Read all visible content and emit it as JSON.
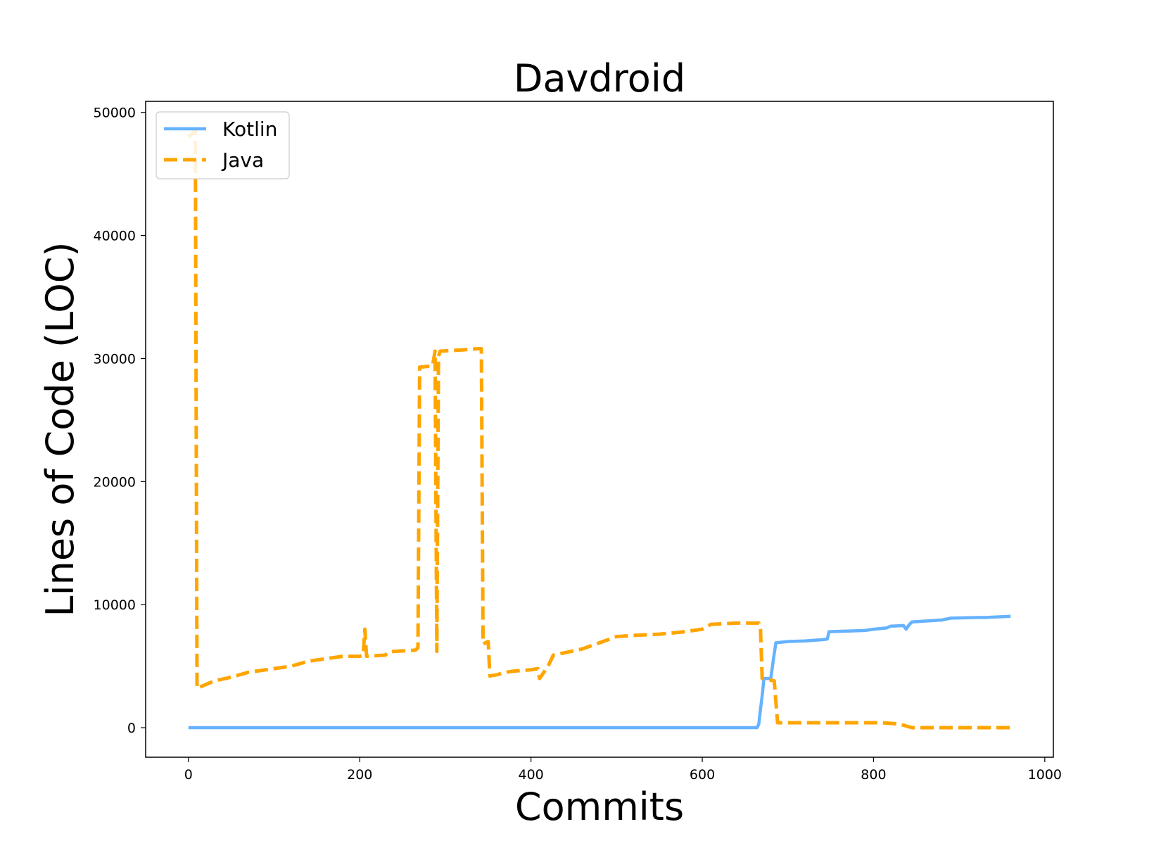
{
  "chart_data": {
    "type": "line",
    "title": "Davdroid",
    "xlabel": "Commits",
    "ylabel": "Lines of Code (LOC)",
    "xlim": [
      -50,
      1010
    ],
    "ylim": [
      -2400,
      50900
    ],
    "xticks": [
      0,
      200,
      400,
      600,
      800,
      1000
    ],
    "yticks": [
      0,
      10000,
      20000,
      30000,
      40000,
      50000
    ],
    "grid": false,
    "legend_position": "upper-left",
    "series": [
      {
        "name": "Kotlin",
        "color": "#66b2ff",
        "style": "solid",
        "points": [
          [
            0,
            0
          ],
          [
            664,
            0
          ],
          [
            666,
            300
          ],
          [
            668,
            1500
          ],
          [
            670,
            2600
          ],
          [
            672,
            4000
          ],
          [
            680,
            4000
          ],
          [
            684,
            6000
          ],
          [
            686,
            6900
          ],
          [
            700,
            7000
          ],
          [
            720,
            7050
          ],
          [
            740,
            7150
          ],
          [
            746,
            7200
          ],
          [
            748,
            7800
          ],
          [
            770,
            7850
          ],
          [
            790,
            7900
          ],
          [
            800,
            8000
          ],
          [
            815,
            8100
          ],
          [
            820,
            8250
          ],
          [
            835,
            8300
          ],
          [
            838,
            8000
          ],
          [
            842,
            8400
          ],
          [
            845,
            8600
          ],
          [
            880,
            8750
          ],
          [
            890,
            8900
          ],
          [
            920,
            8950
          ],
          [
            930,
            8950
          ],
          [
            960,
            9050
          ]
        ]
      },
      {
        "name": "Java",
        "color": "#ffa500",
        "style": "dashed",
        "points": [
          [
            0,
            48000
          ],
          [
            8,
            48500
          ],
          [
            10,
            3200
          ],
          [
            20,
            3500
          ],
          [
            30,
            3800
          ],
          [
            50,
            4100
          ],
          [
            70,
            4500
          ],
          [
            100,
            4800
          ],
          [
            120,
            5000
          ],
          [
            140,
            5400
          ],
          [
            160,
            5600
          ],
          [
            180,
            5800
          ],
          [
            200,
            5800
          ],
          [
            204,
            5900
          ],
          [
            206,
            8000
          ],
          [
            208,
            5800
          ],
          [
            230,
            5900
          ],
          [
            232,
            6100
          ],
          [
            240,
            6200
          ],
          [
            265,
            6300
          ],
          [
            268,
            6500
          ],
          [
            270,
            29300
          ],
          [
            285,
            29400
          ],
          [
            288,
            30600
          ],
          [
            290,
            6200
          ],
          [
            292,
            30200
          ],
          [
            294,
            30600
          ],
          [
            320,
            30700
          ],
          [
            338,
            30800
          ],
          [
            342,
            30800
          ],
          [
            344,
            6800
          ],
          [
            350,
            7000
          ],
          [
            352,
            4200
          ],
          [
            360,
            4300
          ],
          [
            370,
            4500
          ],
          [
            380,
            4600
          ],
          [
            400,
            4700
          ],
          [
            408,
            4800
          ],
          [
            410,
            4000
          ],
          [
            420,
            5000
          ],
          [
            426,
            5900
          ],
          [
            440,
            6100
          ],
          [
            460,
            6400
          ],
          [
            480,
            6900
          ],
          [
            500,
            7400
          ],
          [
            520,
            7500
          ],
          [
            550,
            7600
          ],
          [
            580,
            7800
          ],
          [
            600,
            8000
          ],
          [
            610,
            8400
          ],
          [
            640,
            8500
          ],
          [
            666,
            8500
          ],
          [
            668,
            8000
          ],
          [
            670,
            4000
          ],
          [
            684,
            3800
          ],
          [
            688,
            400
          ],
          [
            700,
            400
          ],
          [
            760,
            400
          ],
          [
            810,
            400
          ],
          [
            830,
            300
          ],
          [
            845,
            0
          ],
          [
            960,
            0
          ]
        ]
      }
    ]
  }
}
